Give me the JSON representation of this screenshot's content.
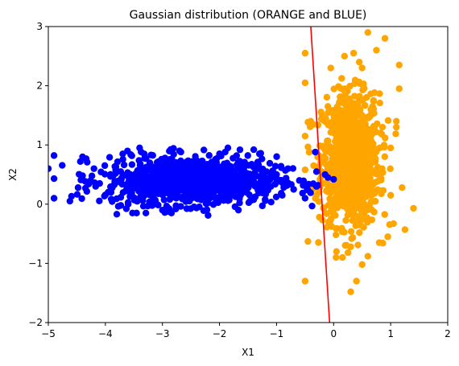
{
  "chart_data": {
    "type": "scatter",
    "title": "Gaussian distribution (ORANGE and BLUE)",
    "xlabel": "X1",
    "ylabel": "X2",
    "xlim": [
      -5,
      2
    ],
    "ylim": [
      -2,
      3
    ],
    "xticks": [
      -5,
      -4,
      -3,
      -2,
      -1,
      0,
      1,
      2
    ],
    "yticks": [
      -2,
      -1,
      0,
      1,
      2,
      3
    ],
    "xtick_labels": [
      "−5",
      "−4",
      "−3",
      "−2",
      "−1",
      "0",
      "1",
      "2"
    ],
    "ytick_labels": [
      "−2",
      "−1",
      "0",
      "1",
      "2",
      "3"
    ],
    "grid": false,
    "colors": {
      "blue": "#0000ff",
      "orange": "#ffa500",
      "line": "#ff0000"
    },
    "series": [
      {
        "color": "#0000ff",
        "cluster": {
          "center": [
            -2.5,
            0.4
          ],
          "spread": [
            0.75,
            0.2
          ],
          "count": 1000
        },
        "points": [
          [
            -5.0,
            0.6
          ],
          [
            -4.4,
            0.8
          ],
          [
            -4.4,
            0.48
          ],
          [
            -4.35,
            0.27
          ],
          [
            -4.2,
            0.6
          ],
          [
            -4.1,
            0.35
          ],
          [
            -3.9,
            0.2
          ],
          [
            -3.8,
            -0.17
          ],
          [
            -3.6,
            0.0
          ],
          [
            -3.4,
            0.95
          ],
          [
            -3.2,
            0.83
          ],
          [
            -3.1,
            0.0
          ],
          [
            -3.0,
            -0.1
          ],
          [
            -2.7,
            0.9
          ],
          [
            -2.6,
            0.1
          ],
          [
            -2.2,
            -0.19
          ],
          [
            -2.0,
            0.85
          ],
          [
            -1.9,
            0.88
          ],
          [
            -1.7,
            0.82
          ],
          [
            -1.4,
            0.92
          ],
          [
            -1.3,
            0.85
          ],
          [
            -1.2,
            0.08
          ],
          [
            -1.0,
            0.5
          ],
          [
            -0.9,
            0.15
          ],
          [
            -0.7,
            0.25
          ],
          [
            -0.5,
            0.1
          ],
          [
            -0.3,
            0.55
          ],
          [
            -0.3,
            0.3
          ],
          [
            -0.32,
            0.88
          ],
          [
            -0.1,
            0.45
          ],
          [
            -0.15,
            0.5
          ],
          [
            0.0,
            0.42
          ],
          [
            -0.6,
            0.4
          ],
          [
            -0.8,
            0.6
          ],
          [
            -1.1,
            0.3
          ]
        ]
      },
      {
        "color": "#ffa500",
        "cluster": {
          "center": [
            0.3,
            0.75
          ],
          "spread": [
            0.25,
            0.55
          ],
          "count": 1000
        },
        "points": [
          [
            0.6,
            2.9
          ],
          [
            0.9,
            2.8
          ],
          [
            0.35,
            2.55
          ],
          [
            0.45,
            2.4
          ],
          [
            -0.5,
            2.55
          ],
          [
            -0.5,
            2.05
          ],
          [
            -0.05,
            2.3
          ],
          [
            0.5,
            2.3
          ],
          [
            0.75,
            2.6
          ],
          [
            1.15,
            2.35
          ],
          [
            1.15,
            1.95
          ],
          [
            -0.4,
            1.4
          ],
          [
            -0.5,
            1.15
          ],
          [
            1.1,
            1.4
          ],
          [
            1.1,
            1.3
          ],
          [
            1.0,
            0.95
          ],
          [
            1.2,
            0.28
          ],
          [
            1.0,
            0.15
          ],
          [
            1.05,
            -0.33
          ],
          [
            1.4,
            -0.07
          ],
          [
            1.25,
            -0.43
          ],
          [
            0.95,
            -0.55
          ],
          [
            0.8,
            -0.65
          ],
          [
            0.6,
            -0.88
          ],
          [
            0.5,
            -1.02
          ],
          [
            0.3,
            -0.72
          ],
          [
            0.05,
            -0.8
          ],
          [
            0.4,
            -1.3
          ],
          [
            0.3,
            -1.48
          ],
          [
            -0.5,
            -1.3
          ],
          [
            -0.45,
            -0.63
          ],
          [
            -0.25,
            -0.22
          ],
          [
            -0.3,
            0.15
          ],
          [
            -0.5,
            0.58
          ],
          [
            -0.35,
            0.65
          ],
          [
            -0.15,
            0.95
          ],
          [
            0.7,
            1.75
          ],
          [
            0.2,
            1.95
          ],
          [
            -0.1,
            1.65
          ],
          [
            0.85,
            0.6
          ],
          [
            0.0,
            0.55
          ]
        ]
      }
    ],
    "boundary_line": {
      "color": "#ff0000",
      "x1": -0.4,
      "y1": 3.0,
      "x2": -0.07,
      "y2": -2.0
    }
  }
}
